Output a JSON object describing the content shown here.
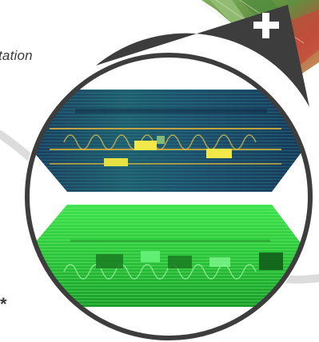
{
  "caption_fragment": "tation",
  "footnote_mark": "*",
  "badge_symbol": "+",
  "icons": {
    "badge": "plus-icon"
  },
  "colors": {
    "arc": "#d9d9d9",
    "ring": "#3d3d3d",
    "ring_highlight": "#ffffff",
    "badge_fill": "#3d3d3d",
    "badge_symbol": "#ffffff",
    "thermal_dark": "#1b3a5a",
    "thermal_mid": "#1f6e78",
    "thermal_hot": "#f2e84a",
    "ndvi_dark": "#0f6b16",
    "ndvi_bright": "#46f25a"
  }
}
